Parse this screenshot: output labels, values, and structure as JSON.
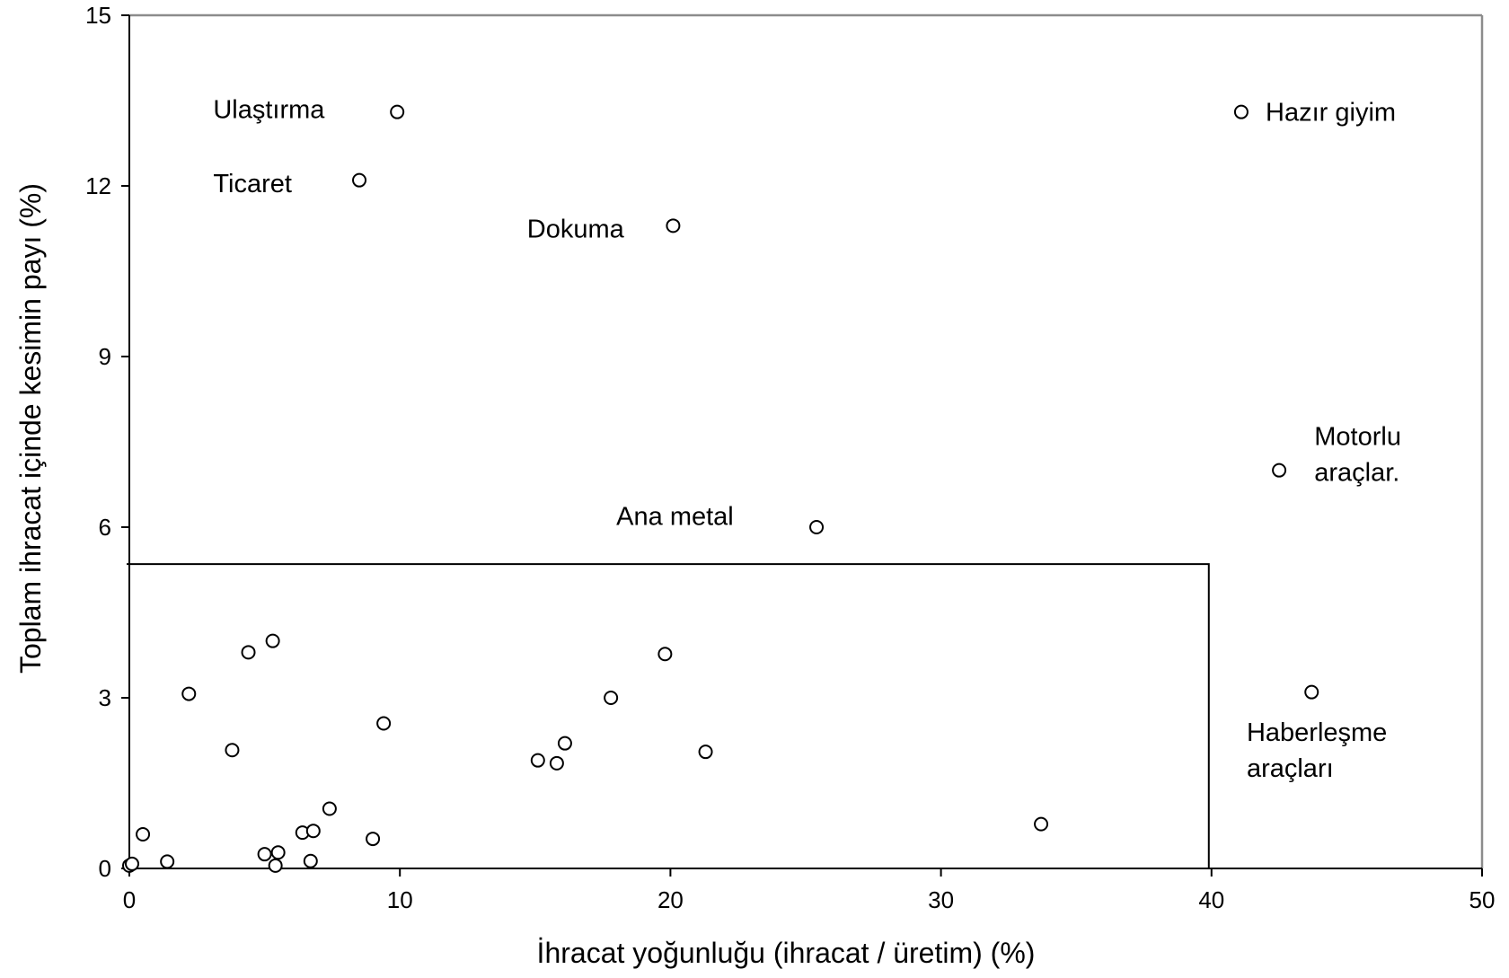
{
  "chart_data": {
    "type": "scatter",
    "title": "",
    "xlabel": "İhracat yoğunluğu (ihracat / üretim) (%)",
    "ylabel": "Toplam ihracat içinde kesimin payı (%)",
    "xlim": [
      0,
      50
    ],
    "ylim": [
      0,
      15
    ],
    "x_ticks": [
      "0",
      "10",
      "20",
      "30",
      "40",
      "50"
    ],
    "y_ticks": [
      "0",
      "3",
      "6",
      "9",
      "12",
      "15"
    ],
    "grid": false,
    "marker": "hollow-circle",
    "series": [
      {
        "points": [
          {
            "x": 9.9,
            "y": 13.3
          },
          {
            "x": 8.5,
            "y": 12.1
          },
          {
            "x": 20.1,
            "y": 11.3
          },
          {
            "x": 41.1,
            "y": 13.3
          },
          {
            "x": 42.5,
            "y": 7.0
          },
          {
            "x": 25.4,
            "y": 6.0
          },
          {
            "x": 43.7,
            "y": 3.1
          },
          {
            "x": 33.7,
            "y": 0.78
          },
          {
            "x": 0.0,
            "y": 0.05
          },
          {
            "x": 0.1,
            "y": 0.08
          },
          {
            "x": 0.5,
            "y": 0.6
          },
          {
            "x": 1.4,
            "y": 0.12
          },
          {
            "x": 2.2,
            "y": 3.07
          },
          {
            "x": 3.8,
            "y": 2.08
          },
          {
            "x": 4.4,
            "y": 3.8
          },
          {
            "x": 5.0,
            "y": 0.25
          },
          {
            "x": 5.3,
            "y": 4.0
          },
          {
            "x": 5.4,
            "y": 0.05
          },
          {
            "x": 5.5,
            "y": 0.28
          },
          {
            "x": 6.4,
            "y": 0.63
          },
          {
            "x": 6.7,
            "y": 0.13
          },
          {
            "x": 6.8,
            "y": 0.66
          },
          {
            "x": 7.4,
            "y": 1.05
          },
          {
            "x": 9.0,
            "y": 0.52
          },
          {
            "x": 9.4,
            "y": 2.55
          },
          {
            "x": 15.1,
            "y": 1.9
          },
          {
            "x": 15.8,
            "y": 1.85
          },
          {
            "x": 16.1,
            "y": 2.2
          },
          {
            "x": 17.8,
            "y": 3.0
          },
          {
            "x": 19.8,
            "y": 3.77
          },
          {
            "x": 21.3,
            "y": 2.05
          }
        ]
      }
    ],
    "annotations": [
      {
        "lines": [
          "Ulaştırma"
        ],
        "x": 3.1,
        "y": 13.35,
        "anchor": "start"
      },
      {
        "lines": [
          "Ticaret"
        ],
        "x": 3.1,
        "y": 12.05,
        "anchor": "start"
      },
      {
        "lines": [
          "Dokuma"
        ],
        "x": 14.7,
        "y": 11.25,
        "anchor": "start"
      },
      {
        "lines": [
          "Hazır giyim"
        ],
        "x": 42.0,
        "y": 13.3,
        "anchor": "start"
      },
      {
        "lines": [
          "Motorlu",
          "araçlar."
        ],
        "x": 43.8,
        "y": 7.6,
        "anchor": "start"
      },
      {
        "lines": [
          "Ana metal"
        ],
        "x": 18.0,
        "y": 6.2,
        "anchor": "start"
      },
      {
        "lines": [
          "Haberleşme",
          "araçları"
        ],
        "x": 41.3,
        "y": 2.4,
        "anchor": "start"
      }
    ],
    "reference_box": {
      "x_max": 39.9,
      "y_max": 5.35
    }
  }
}
